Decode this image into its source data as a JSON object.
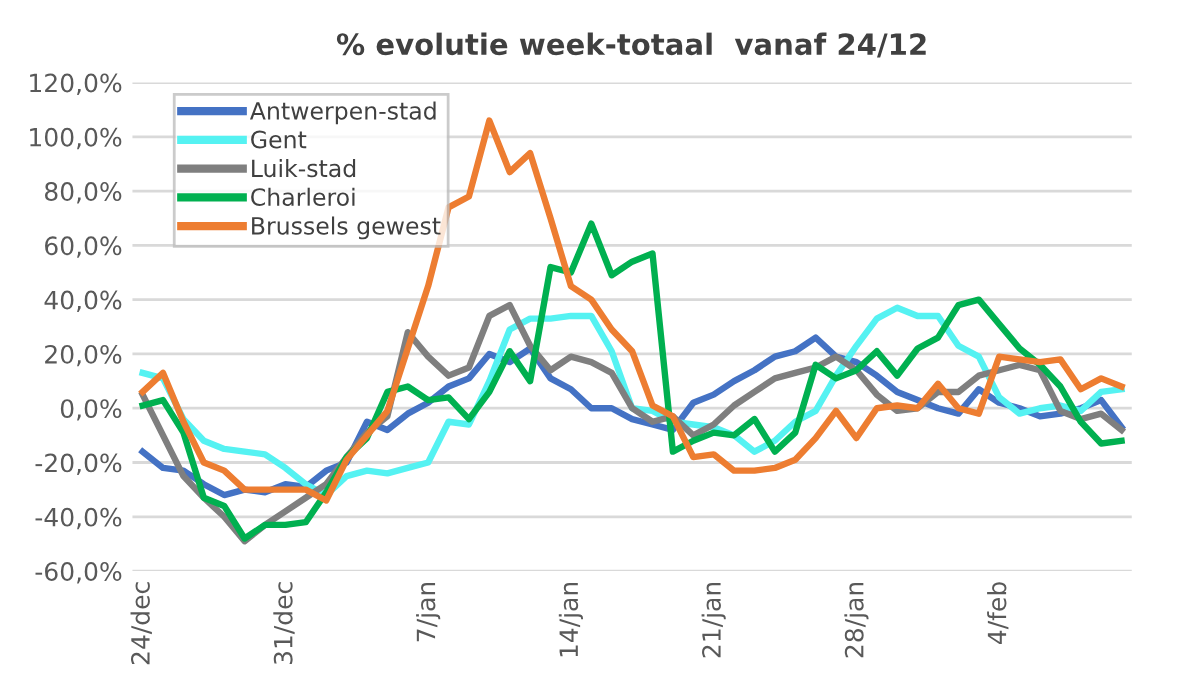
{
  "chart_data": {
    "type": "line",
    "title": "% evolutie week-totaal  vanaf 24/12",
    "categories": [
      "24/dec",
      null,
      null,
      null,
      null,
      null,
      null,
      "31/dec",
      null,
      null,
      null,
      null,
      null,
      null,
      "7/jan",
      null,
      null,
      null,
      null,
      null,
      null,
      "14/jan",
      null,
      null,
      null,
      null,
      null,
      null,
      "21/jan",
      null,
      null,
      null,
      null,
      null,
      null,
      "28/jan",
      null,
      null,
      null,
      null,
      null,
      null,
      "4/feb",
      null,
      null,
      null,
      null,
      null,
      null
    ],
    "series": [
      {
        "name": "Antwerpen-stad",
        "color": "#4472c4",
        "values": [
          -16,
          -22,
          -23,
          -28,
          -32,
          -30,
          -31,
          -28,
          -29,
          -23,
          -20,
          -5,
          -8,
          -2,
          2,
          8,
          11,
          20,
          17,
          22,
          11,
          7,
          0,
          0,
          -4,
          -6,
          -8,
          2,
          5,
          10,
          14,
          19,
          21,
          26,
          19,
          17,
          12,
          6,
          3,
          0,
          -2,
          7,
          2,
          0,
          -3,
          -2,
          0,
          3,
          -7
        ]
      },
      {
        "name": "Gent",
        "color": "#55f2f2",
        "values": [
          13,
          11,
          -4,
          -12,
          -15,
          -16,
          -17,
          -22,
          -28,
          -32,
          -25,
          -23,
          -24,
          -22,
          -20,
          -5,
          -6,
          10,
          29,
          33,
          33,
          34,
          34,
          21,
          0,
          -1,
          -5,
          -6,
          -7,
          -10,
          -16,
          -12,
          -5,
          -1,
          12,
          23,
          33,
          37,
          34,
          34,
          23,
          19,
          4,
          -2,
          0,
          1,
          -1,
          6,
          7
        ]
      },
      {
        "name": "Luik-stad",
        "color": "#7f7f7f",
        "values": [
          5,
          -10,
          -25,
          -33,
          -40,
          -49,
          -43,
          -38,
          -33,
          -28,
          -18,
          -9,
          -3,
          28,
          19,
          12,
          15,
          34,
          38,
          23,
          14,
          19,
          17,
          13,
          0,
          -5,
          -3,
          -10,
          -6,
          1,
          6,
          11,
          13,
          15,
          19,
          14,
          5,
          -1,
          0,
          6,
          6,
          12,
          14,
          16,
          14,
          -1,
          -4,
          -2,
          -8
        ]
      },
      {
        "name": "Charleroi",
        "color": "#00b050",
        "values": [
          1,
          3,
          -9,
          -33,
          -36,
          -48,
          -43,
          -43,
          -42,
          -31,
          -18,
          -11,
          6,
          8,
          3,
          4,
          -4,
          6,
          21,
          10,
          52,
          50,
          68,
          49,
          54,
          57,
          -16,
          -12,
          -9,
          -10,
          -4,
          -16,
          -9,
          16,
          11,
          14,
          21,
          12,
          22,
          26,
          38,
          40,
          31,
          22,
          16,
          8,
          -5,
          -13,
          -12
        ]
      },
      {
        "name": "Brussels gewest",
        "color": "#ed7d31",
        "values": [
          6,
          13,
          -5,
          -20,
          -23,
          -30,
          -30,
          -30,
          -30,
          -34,
          -19,
          -10,
          -1,
          22,
          45,
          74,
          78,
          106,
          87,
          94,
          70,
          45,
          40,
          29,
          21,
          1,
          -3,
          -18,
          -17,
          -23,
          -23,
          -22,
          -19,
          -11,
          -1,
          -11,
          0,
          1,
          0,
          9,
          0,
          -2,
          19,
          18,
          17,
          18,
          7,
          11,
          8
        ]
      }
    ],
    "ylim": [
      -60,
      120
    ],
    "yticks": [
      {
        "value": -60,
        "label": "-60,0%"
      },
      {
        "value": -40,
        "label": "-40,0%"
      },
      {
        "value": -20,
        "label": "-20,0%"
      },
      {
        "value": 0,
        "label": "0,0%"
      },
      {
        "value": 20,
        "label": "20,0%"
      },
      {
        "value": 40,
        "label": "40,0%"
      },
      {
        "value": 60,
        "label": "60,0%"
      },
      {
        "value": 80,
        "label": "80,0%"
      },
      {
        "value": 100,
        "label": "100,0%"
      },
      {
        "value": 120,
        "label": "120,0%"
      }
    ],
    "grid": "y",
    "legend": "top left",
    "marker": "none",
    "line_style": "solid"
  }
}
